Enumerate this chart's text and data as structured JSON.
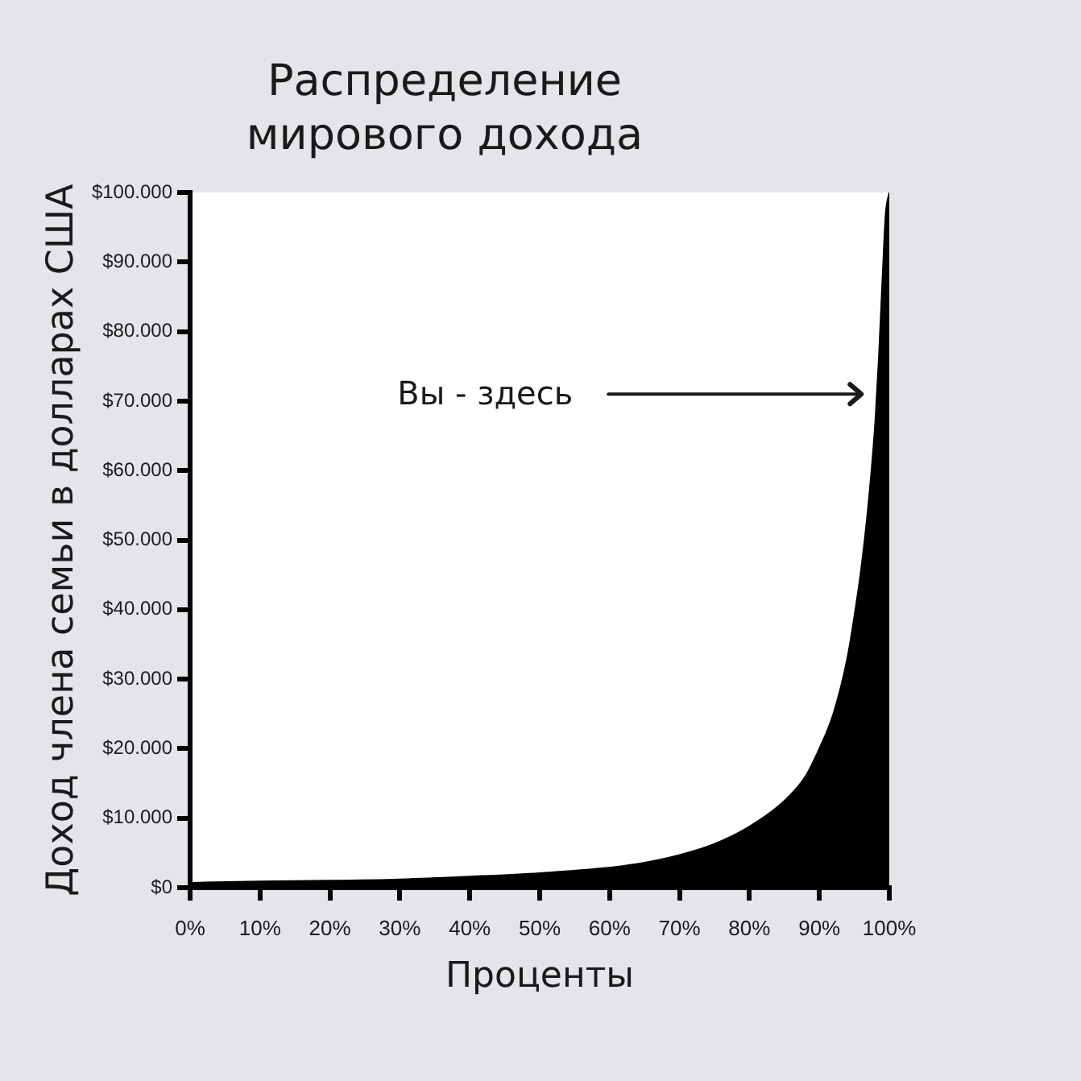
{
  "chart_data": {
    "type": "area",
    "title": "Распределение\nмирового дохода",
    "xlabel": "Проценты",
    "ylabel": "Доход члена семьи в долларах США",
    "x": [
      0,
      10,
      20,
      30,
      40,
      50,
      60,
      65,
      70,
      75,
      80,
      85,
      88,
      90,
      92,
      94,
      95,
      96,
      97,
      98,
      98.5,
      99,
      99.5,
      100
    ],
    "values": [
      700,
      900,
      1000,
      1200,
      1600,
      2100,
      2900,
      3600,
      4700,
      6300,
      8800,
      12500,
      16000,
      20000,
      25000,
      33000,
      39000,
      46000,
      55000,
      67000,
      76000,
      87000,
      97000,
      100000
    ],
    "color": "#000000",
    "xlim": [
      0,
      100
    ],
    "xticks": [
      {
        "value": 0,
        "label": "0%"
      },
      {
        "value": 10,
        "label": "10%"
      },
      {
        "value": 20,
        "label": "20%"
      },
      {
        "value": 30,
        "label": "30%"
      },
      {
        "value": 40,
        "label": "40%"
      },
      {
        "value": 50,
        "label": "50%"
      },
      {
        "value": 60,
        "label": "60%"
      },
      {
        "value": 70,
        "label": "70%"
      },
      {
        "value": 80,
        "label": "80%"
      },
      {
        "value": 90,
        "label": "90%"
      },
      {
        "value": 100,
        "label": "100%"
      }
    ],
    "ylim": [
      0,
      100000
    ],
    "yticks": [
      {
        "value": 0,
        "label": "$0"
      },
      {
        "value": 10000,
        "label": "$10.000"
      },
      {
        "value": 20000,
        "label": "$20.000"
      },
      {
        "value": 30000,
        "label": "$30.000"
      },
      {
        "value": 40000,
        "label": "$40.000"
      },
      {
        "value": 50000,
        "label": "$50.000"
      },
      {
        "value": 60000,
        "label": "$60.000"
      },
      {
        "value": 70000,
        "label": "$70.000"
      },
      {
        "value": 80000,
        "label": "$80.000"
      },
      {
        "value": 90000,
        "label": "$90.000"
      },
      {
        "value": 100000,
        "label": "$100.000"
      }
    ],
    "annotations": [
      "Вы - здесь"
    ]
  }
}
